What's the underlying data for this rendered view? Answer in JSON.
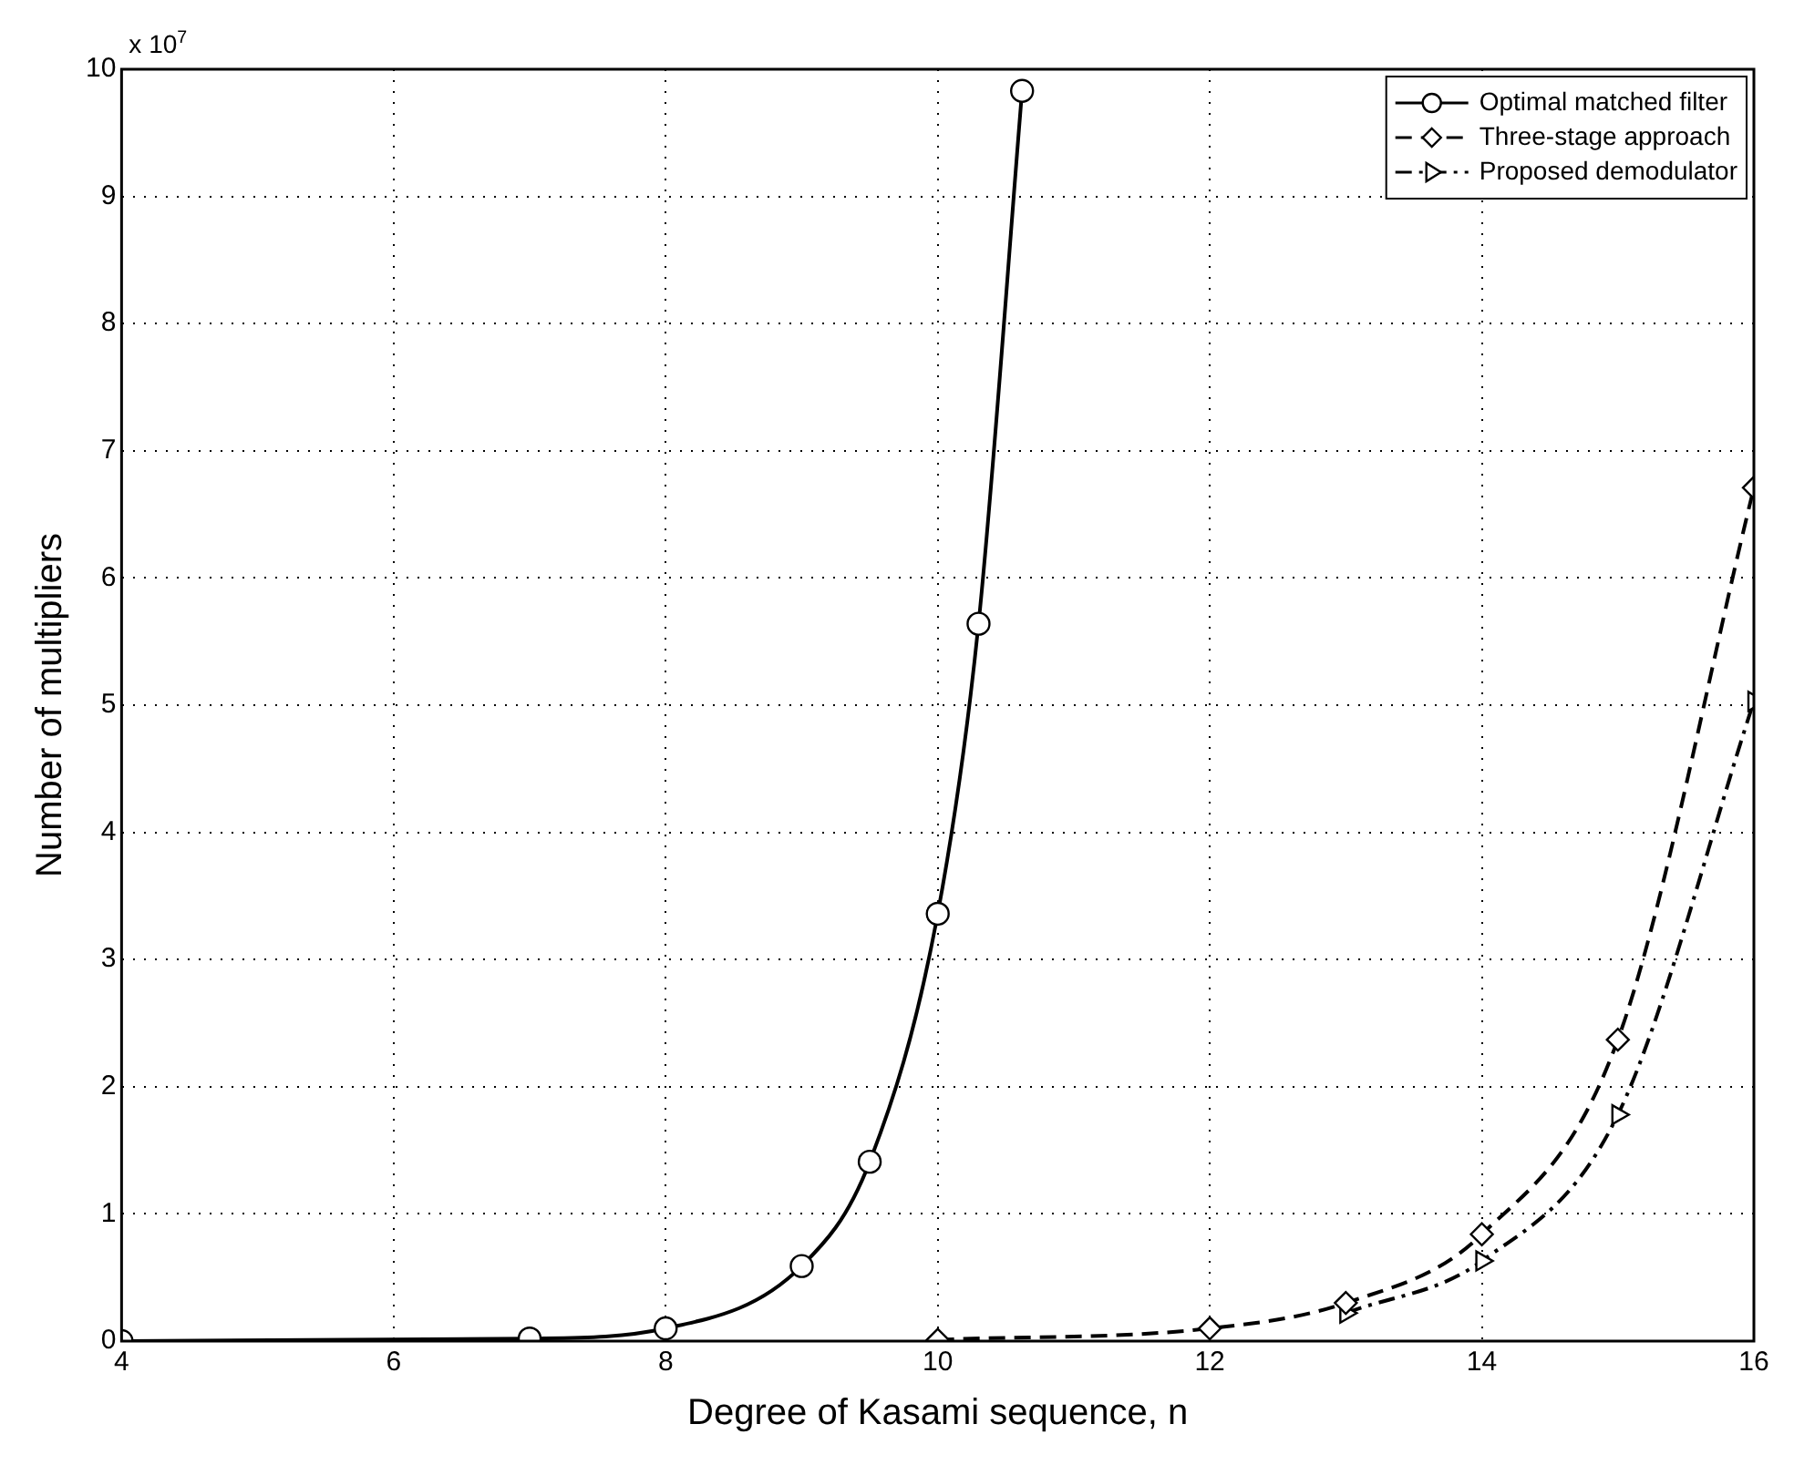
{
  "chart_data": {
    "type": "line",
    "xlabel": "Degree of Kasami sequence, n",
    "ylabel": "Number of multipliers",
    "annotations": [
      "x 10$^{7}$"
    ],
    "xlim": [
      4,
      16
    ],
    "xticks": [
      4,
      6,
      8,
      10,
      12,
      14,
      16
    ],
    "ylim": [
      0,
      10
    ],
    "yticks": [
      0,
      1,
      2,
      3,
      4,
      5,
      6,
      7,
      8,
      9,
      10
    ],
    "grid": true,
    "legend": "top right",
    "series": [
      {
        "name": "Optimal matched filter",
        "color": "#000000",
        "line_style": "solid",
        "marker": "circle",
        "x": [
          4,
          7,
          8,
          9,
          9.5,
          10,
          10.3,
          10.62
        ],
        "values": [
          0,
          0.02,
          0.1,
          0.59,
          1.41,
          3.36,
          5.64,
          9.83
        ]
      },
      {
        "name": "Three-stage approach",
        "color": "#000000",
        "line_style": "dashed",
        "marker": "diamond",
        "x": [
          10,
          12,
          13,
          14,
          15,
          16
        ],
        "values": [
          0.01,
          0.1,
          0.3,
          0.84,
          2.37,
          6.71
        ]
      },
      {
        "name": "Proposed demodulator",
        "color": "#000000",
        "line_style": "dashdot",
        "marker": "triangle",
        "x": [
          13,
          14,
          15,
          16
        ],
        "values": [
          0.22,
          0.63,
          1.78,
          5.03
        ]
      }
    ]
  }
}
